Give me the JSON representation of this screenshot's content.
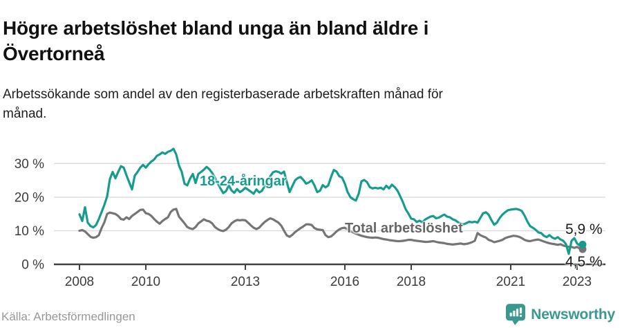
{
  "header": {
    "title": "Högre arbetslöshet bland unga än bland äldre i Övertorneå",
    "title_lines": [
      "Högre arbetslöshet bland unga än bland äldre i",
      "Övertorneå"
    ],
    "subtitle": "Arbetssökande som andel av den registerbaserade arbetskraften månad för månad.",
    "subtitle_lines": [
      "Arbetssökande som andel av den registerbaserade arbetskraften månad för",
      "månad."
    ]
  },
  "annotations": {
    "young_label": "18-24-åringar",
    "total_label": "Total arbetslöshet",
    "young_end_value": "5,9 %",
    "total_end_value": "4,5 %"
  },
  "footer": {
    "source": "Källa: Arbetsförmedlingen",
    "logo_text": "Newsworthy"
  },
  "colors": {
    "young_series": "#169c8e",
    "total_series": "#757575",
    "total_label": "#666666",
    "grid": "#d9d9d9",
    "axis": "#404040",
    "tick_text": "#3c3c3c",
    "logo": "#3a9890"
  },
  "chart_data": {
    "type": "line",
    "title": "Högre arbetslöshet bland unga än bland äldre i Övertorneå",
    "subtitle": "Arbetssökande som andel av den registerbaserade arbetskraften månad för månad.",
    "frequency": "monthly",
    "x_start": "2008-01",
    "x_end": "2023-03",
    "xlabel": "",
    "ylabel": "",
    "ylim": [
      0,
      36
    ],
    "grid": "horizontal",
    "legend_position": "inline-labels",
    "xtick_years": [
      2008,
      2010,
      2013,
      2016,
      2018,
      2021,
      2023
    ],
    "xtick_labels": [
      "2008",
      "2010",
      "2013",
      "2016",
      "2018",
      "2021",
      "2023"
    ],
    "ytick_values": [
      30,
      20,
      10,
      0
    ],
    "ytick_labels": [
      "30 %",
      "20 %",
      "10 %",
      "0 %"
    ],
    "series": [
      {
        "name": "Total arbetslöshet",
        "color": "#757575",
        "end_label": "4,5 %",
        "values": [
          10.0,
          10.2,
          9.8,
          9.0,
          8.2,
          7.9,
          8.1,
          8.7,
          10.8,
          12.5,
          15.0,
          15.4,
          15.2,
          15.0,
          14.4,
          13.5,
          13.3,
          14.0,
          13.5,
          14.4,
          15.0,
          15.6,
          16.2,
          16.3,
          15.2,
          15.0,
          14.4,
          13.5,
          12.7,
          12.1,
          12.9,
          13.5,
          14.0,
          15.6,
          16.3,
          16.5,
          14.2,
          13.2,
          12.2,
          11.1,
          10.7,
          10.5,
          11.1,
          12.2,
          12.8,
          13.4,
          13.0,
          12.8,
          12.2,
          11.1,
          10.5,
          10.1,
          9.9,
          10.3,
          11.1,
          12.2,
          12.8,
          13.2,
          13.1,
          13.2,
          13.1,
          12.4,
          11.6,
          10.9,
          10.5,
          10.9,
          11.8,
          12.6,
          13.2,
          13.7,
          13.4,
          12.9,
          12.4,
          11.5,
          10.0,
          8.6,
          8.2,
          8.8,
          9.6,
          10.2,
          10.8,
          11.3,
          11.9,
          11.9,
          11.7,
          10.8,
          10.4,
          10.3,
          10.2,
          8.7,
          8.1,
          8.3,
          9.0,
          9.8,
          10.4,
          10.8,
          10.9,
          10.4,
          9.9,
          9.5,
          9.1,
          8.8,
          8.5,
          8.3,
          8.1,
          8.0,
          7.9,
          8.0,
          7.9,
          7.7,
          7.5,
          7.4,
          7.2,
          7.1,
          7.0,
          6.9,
          6.9,
          7.0,
          7.1,
          7.3,
          7.3,
          7.1,
          7.0,
          6.9,
          6.8,
          6.7,
          6.7,
          6.8,
          6.9,
          6.7,
          6.5,
          6.4,
          6.3,
          6.1,
          6.0,
          5.9,
          6.0,
          6.1,
          6.2,
          6.0,
          6.1,
          6.3,
          6.6,
          7.0,
          9.3,
          8.7,
          8.3,
          8.0,
          7.3,
          7.0,
          6.6,
          6.8,
          7.0,
          7.3,
          7.8,
          8.1,
          8.3,
          8.5,
          8.4,
          8.2,
          7.8,
          7.3,
          7.0,
          6.9,
          7.1,
          7.3,
          7.4,
          7.1,
          6.8,
          6.5,
          6.3,
          6.1,
          6.0,
          5.8,
          6.0,
          5.6,
          5.4,
          5.2,
          5.2,
          4.9,
          5.2,
          4.7,
          4.5
        ]
      },
      {
        "name": "18-24-åringar",
        "color": "#169c8e",
        "end_label": "5,9 %",
        "values": [
          14.9,
          12.9,
          17.0,
          12.4,
          11.4,
          11.0,
          11.7,
          13.5,
          15.6,
          17.7,
          20.2,
          25.4,
          27.5,
          25.6,
          27.5,
          29.2,
          28.8,
          26.5,
          24.4,
          22.3,
          26.4,
          27.5,
          28.8,
          29.6,
          28.8,
          29.8,
          30.6,
          31.2,
          32.3,
          32.7,
          33.3,
          32.9,
          33.5,
          33.8,
          34.4,
          32.7,
          29.4,
          27.5,
          24.0,
          23.5,
          25.5,
          26.9,
          24.2,
          26.9,
          27.5,
          28.2,
          29.0,
          28.3,
          27.2,
          25.8,
          24.1,
          22.6,
          21.2,
          21.8,
          23.5,
          22.0,
          21.3,
          22.4,
          21.5,
          22.0,
          22.8,
          22.2,
          21.6,
          21.0,
          22.3,
          21.4,
          21.9,
          23.3,
          24.8,
          26.2,
          27.4,
          27.7,
          27.5,
          27.0,
          27.6,
          24.5,
          21.5,
          23.3,
          25.0,
          25.7,
          26.0,
          25.1,
          24.0,
          24.4,
          25.0,
          23.5,
          21.5,
          21.9,
          23.6,
          22.9,
          23.5,
          26.0,
          28.1,
          27.6,
          26.2,
          25.8,
          24.0,
          21.5,
          20.0,
          19.4,
          19.0,
          21.0,
          24.7,
          25.1,
          24.5,
          23.0,
          22.6,
          22.8,
          22.6,
          22.8,
          22.3,
          23.4,
          22.6,
          23.7,
          23.0,
          22.0,
          20.3,
          18.5,
          16.4,
          15.1,
          13.6,
          13.4,
          12.6,
          13.0,
          12.5,
          13.3,
          13.8,
          14.2,
          14.4,
          13.7,
          13.9,
          14.4,
          14.8,
          14.2,
          14.0,
          13.4,
          13.1,
          12.5,
          12.1,
          11.9,
          12.3,
          12.7,
          12.5,
          12.7,
          12.4,
          13.8,
          15.2,
          15.5,
          14.8,
          13.2,
          11.8,
          12.4,
          13.8,
          14.8,
          15.5,
          16.1,
          16.3,
          16.4,
          16.5,
          16.3,
          15.9,
          14.5,
          12.8,
          11.4,
          10.9,
          10.3,
          9.5,
          9.3,
          8.5,
          8.1,
          8.7,
          8.0,
          7.6,
          8.1,
          7.4,
          7.0,
          6.0,
          3.1,
          7.0,
          7.8,
          6.2,
          5.6,
          5.9
        ]
      }
    ]
  }
}
